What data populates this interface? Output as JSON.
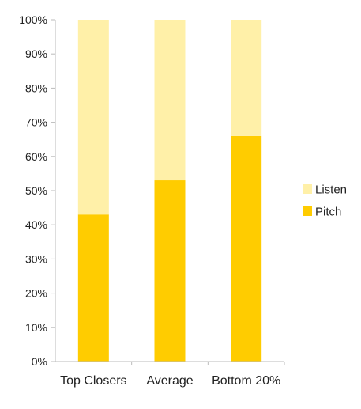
{
  "chart_data": {
    "type": "bar",
    "stacked": true,
    "normalized": true,
    "categories": [
      "Top Closers",
      "Average",
      "Bottom 20%"
    ],
    "series": [
      {
        "name": "Pitch",
        "values": [
          43,
          53,
          66
        ],
        "color": "#FFCC00"
      },
      {
        "name": "Listen",
        "values": [
          57,
          47,
          34
        ],
        "color": "#FFF0A8"
      }
    ],
    "ylim": [
      0,
      100
    ],
    "yticks": [
      0,
      10,
      20,
      30,
      40,
      50,
      60,
      70,
      80,
      90,
      100
    ],
    "ytick_labels": [
      "0%",
      "10%",
      "20%",
      "30%",
      "40%",
      "50%",
      "60%",
      "70%",
      "80%",
      "90%",
      "100%"
    ],
    "legend_order": [
      "Listen",
      "Pitch"
    ],
    "legend_position": "right",
    "grid": false,
    "axis_color": "#BBBBBB",
    "text_color": "#222222"
  }
}
